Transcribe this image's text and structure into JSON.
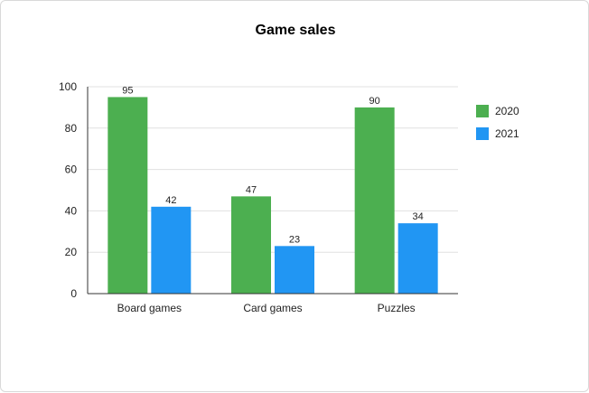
{
  "chart_data": {
    "type": "bar",
    "title": "Game sales",
    "categories": [
      "Board games",
      "Card games",
      "Puzzles"
    ],
    "series": [
      {
        "name": "2020",
        "values": [
          95,
          47,
          90
        ],
        "color": "#4caf50"
      },
      {
        "name": "2021",
        "values": [
          42,
          23,
          34
        ],
        "color": "#2196f3"
      }
    ],
    "ylim": [
      0,
      100
    ],
    "yticks": [
      0,
      20,
      40,
      60,
      80,
      100
    ],
    "grid": true,
    "legend": "right"
  }
}
